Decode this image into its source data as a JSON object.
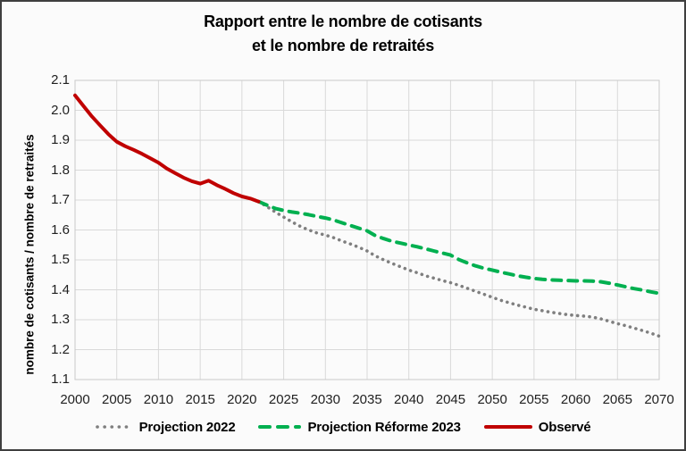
{
  "page": {
    "background": "#fbfbfb",
    "border_color": "#3f3f3f",
    "gridline_color": "#d9d9d9",
    "plot_border_color": "#c9c9c9"
  },
  "chart_data": {
    "type": "line",
    "title": "Rapport entre le nombre de cotisants et le nombre de retraités",
    "title_line1": "Rapport entre le nombre de cotisants",
    "title_line2": "et le nombre de retraités",
    "xlabel": "",
    "ylabel": "nombre de cotisants / nombre de retraités",
    "xlim": [
      2000,
      2070
    ],
    "ylim": [
      1.1,
      2.1
    ],
    "grid": true,
    "legend_position": "bottom",
    "x_ticks": [
      "2000",
      "2005",
      "2010",
      "2015",
      "2020",
      "2025",
      "2030",
      "2035",
      "2040",
      "2045",
      "2050",
      "2055",
      "2060",
      "2065",
      "2070"
    ],
    "y_ticks": [
      "2.1",
      "2.0",
      "1.9",
      "1.8",
      "1.7",
      "1.6",
      "1.5",
      "1.4",
      "1.3",
      "1.2",
      "1.1"
    ],
    "series": [
      {
        "key": "projection-2022",
        "name": "Projection 2022",
        "color": "#7f7f7f",
        "style": "dotted",
        "start_year": 2022,
        "values": [
          1.695,
          1.678,
          1.66,
          1.643,
          1.627,
          1.612,
          1.6,
          1.59,
          1.583,
          1.574,
          1.563,
          1.553,
          1.542,
          1.53,
          1.513,
          1.5,
          1.488,
          1.477,
          1.466,
          1.457,
          1.447,
          1.439,
          1.431,
          1.424,
          1.415,
          1.405,
          1.395,
          1.385,
          1.375,
          1.365,
          1.357,
          1.349,
          1.342,
          1.335,
          1.33,
          1.325,
          1.321,
          1.317,
          1.314,
          1.312,
          1.309,
          1.303,
          1.295,
          1.287,
          1.28,
          1.272,
          1.264,
          1.255,
          1.245
        ]
      },
      {
        "key": "projection-reforme-2023",
        "name": "Projection Réforme 2023",
        "color": "#00b050",
        "style": "dashed",
        "start_year": 2022,
        "values": [
          1.695,
          1.683,
          1.672,
          1.665,
          1.66,
          1.656,
          1.651,
          1.645,
          1.64,
          1.633,
          1.624,
          1.615,
          1.606,
          1.597,
          1.581,
          1.571,
          1.562,
          1.556,
          1.55,
          1.544,
          1.537,
          1.53,
          1.523,
          1.516,
          1.501,
          1.49,
          1.48,
          1.472,
          1.466,
          1.459,
          1.453,
          1.447,
          1.442,
          1.438,
          1.435,
          1.433,
          1.432,
          1.431,
          1.43,
          1.43,
          1.429,
          1.427,
          1.422,
          1.416,
          1.41,
          1.404,
          1.399,
          1.393,
          1.388
        ]
      },
      {
        "key": "observe",
        "name": "Observé",
        "color": "#c00000",
        "style": "solid",
        "start_year": 2000,
        "values": [
          2.05,
          2.015,
          1.98,
          1.95,
          1.92,
          1.895,
          1.88,
          1.868,
          1.855,
          1.84,
          1.825,
          1.805,
          1.79,
          1.775,
          1.763,
          1.755,
          1.765,
          1.75,
          1.737,
          1.723,
          1.712,
          1.705,
          1.695
        ]
      }
    ]
  }
}
